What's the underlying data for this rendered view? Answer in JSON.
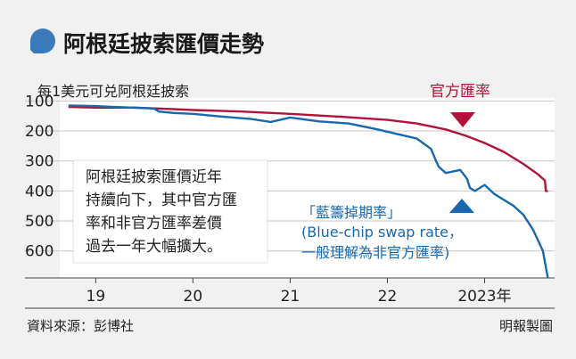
{
  "title": "阿根廷披索匯價走勢",
  "unit_label": "每1美元可兑阿根廷披索",
  "note_lines": [
    "阿根廷披索匯價近年",
    "持續向下，其中官方匯",
    "率和非官方匯率差價",
    "過去一年大幅擴大。"
  ],
  "source": "資料來源：彭博社",
  "credit": "明報製圖",
  "colors": {
    "official": "#b3123a",
    "bluechip": "#1768b0",
    "accent": "#3a7ab8"
  },
  "chart_data": {
    "type": "line",
    "title": "阿根廷披索匯價走勢",
    "ylabel": "每1美元可兑阿根廷披索",
    "xlabel": "",
    "y_inverted": true,
    "ylim": [
      90,
      690
    ],
    "xlim": [
      2018.63,
      2023.72
    ],
    "y_ticks": [
      100,
      200,
      300,
      400,
      500,
      600
    ],
    "x_ticks": [
      {
        "label": "19",
        "x": 2019.0
      },
      {
        "label": "20",
        "x": 2020.0
      },
      {
        "label": "21",
        "x": 2021.0
      },
      {
        "label": "22",
        "x": 2022.0
      },
      {
        "label": "2023年",
        "x": 2023.0
      }
    ],
    "series": [
      {
        "name": "官方匯率",
        "color": "#b3123a",
        "x": [
          2018.72,
          2019.0,
          2019.4,
          2019.7,
          2020.0,
          2020.5,
          2021.0,
          2021.5,
          2022.0,
          2022.3,
          2022.6,
          2022.8,
          2023.0,
          2023.2,
          2023.4,
          2023.55,
          2023.62,
          2023.63,
          2023.65
        ],
        "values": [
          120,
          122,
          122,
          126,
          130,
          135,
          143,
          152,
          163,
          175,
          195,
          215,
          240,
          270,
          310,
          345,
          365,
          400,
          400
        ]
      },
      {
        "name": "藍籌掉期率",
        "color": "#1768b0",
        "x": [
          2018.72,
          2019.0,
          2019.2,
          2019.6,
          2019.65,
          2019.8,
          2020.0,
          2020.3,
          2020.6,
          2020.8,
          2021.0,
          2021.3,
          2021.6,
          2021.9,
          2022.1,
          2022.3,
          2022.45,
          2022.5,
          2022.53,
          2022.6,
          2022.75,
          2022.82,
          2022.85,
          2022.9,
          2023.0,
          2023.1,
          2023.2,
          2023.3,
          2023.4,
          2023.5,
          2023.6,
          2023.65
        ],
        "values": [
          115,
          117,
          120,
          125,
          135,
          140,
          143,
          152,
          160,
          170,
          155,
          168,
          175,
          195,
          210,
          225,
          260,
          300,
          320,
          340,
          330,
          360,
          390,
          400,
          380,
          410,
          430,
          450,
          480,
          530,
          600,
          690
        ]
      }
    ]
  },
  "annotations": {
    "official_label": "官方匯率",
    "bluechip_lines": [
      "「藍籌掉期率」",
      "(Blue-chip swap rate，",
      "一般理解為非官方匯率)"
    ]
  }
}
